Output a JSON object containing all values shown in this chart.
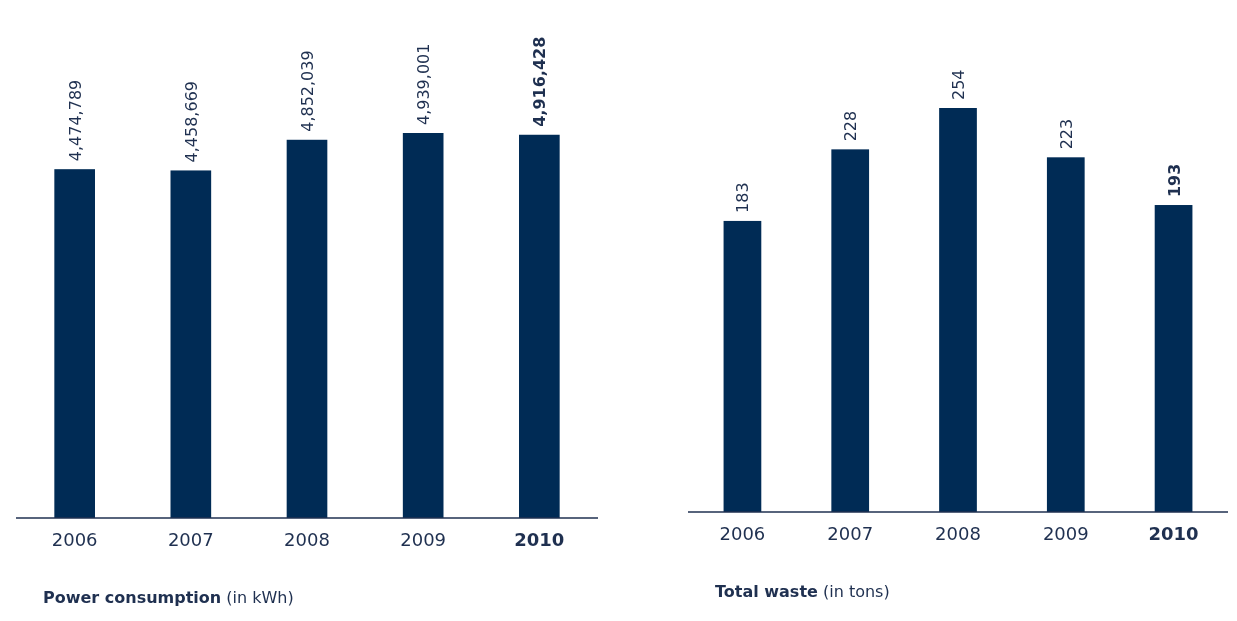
{
  "chart_data": [
    {
      "type": "bar",
      "title": "Power consumption",
      "subtitle": "(in kWh)",
      "categories": [
        "2006",
        "2007",
        "2008",
        "2009",
        "2010"
      ],
      "values": [
        4474789,
        4458669,
        4852039,
        4939001,
        4916428
      ],
      "value_labels": [
        "4,474,789",
        "4,458,669",
        "4,852,039",
        "4,939,001",
        "4,916,428"
      ],
      "color": "#002b55"
    },
    {
      "type": "bar",
      "title": "Total waste",
      "subtitle": "(in tons)",
      "categories": [
        "2006",
        "2007",
        "2008",
        "2009",
        "2010"
      ],
      "values": [
        183,
        228,
        254,
        223,
        193
      ],
      "value_labels": [
        "183",
        "228",
        "254",
        "223",
        "193"
      ],
      "color": "#002b55"
    }
  ]
}
